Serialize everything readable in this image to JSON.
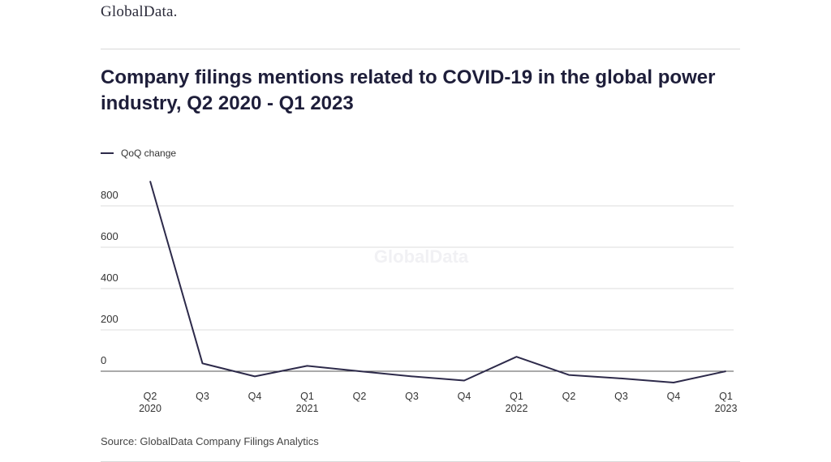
{
  "brand": {
    "name": "GlobalData."
  },
  "header": {
    "title": "Company filings mentions related to COVID-19 in the global power industry, Q2 2020 - Q1 2023"
  },
  "footer": {
    "source": "Source: GlobalData Company Filings Analytics"
  },
  "watermark": "GlobalData",
  "colors": {
    "line": "#2d2a4a",
    "grid": "#dcdcdc",
    "axis": "#555555",
    "text": "#1e1e3a"
  },
  "chart_data": {
    "type": "line",
    "title": "Company filings mentions related to COVID-19 in the global power industry, Q2 2020 - Q1 2023",
    "xlabel": "",
    "ylabel": "",
    "categories": [
      "Q2 2020",
      "Q3",
      "Q4",
      "Q1 2021",
      "Q2",
      "Q3",
      "Q4",
      "Q1 2022",
      "Q2",
      "Q3",
      "Q4",
      "Q1 2023"
    ],
    "category_lines": [
      [
        "Q2",
        "2020"
      ],
      [
        "Q3"
      ],
      [
        "Q4"
      ],
      [
        "Q1",
        "2021"
      ],
      [
        "Q2"
      ],
      [
        "Q3"
      ],
      [
        "Q4"
      ],
      [
        "Q1",
        "2022"
      ],
      [
        "Q2"
      ],
      [
        "Q3"
      ],
      [
        "Q4"
      ],
      [
        "Q1",
        "2023"
      ]
    ],
    "series": [
      {
        "name": "QoQ change",
        "values": [
          920,
          38,
          -25,
          26,
          0,
          -25,
          -45,
          70,
          -18,
          -35,
          -55,
          0
        ]
      }
    ],
    "yticks": [
      0,
      200,
      400,
      600,
      800
    ],
    "ylim": [
      -60,
      920
    ],
    "grid": true,
    "legend_position": "top-left"
  }
}
